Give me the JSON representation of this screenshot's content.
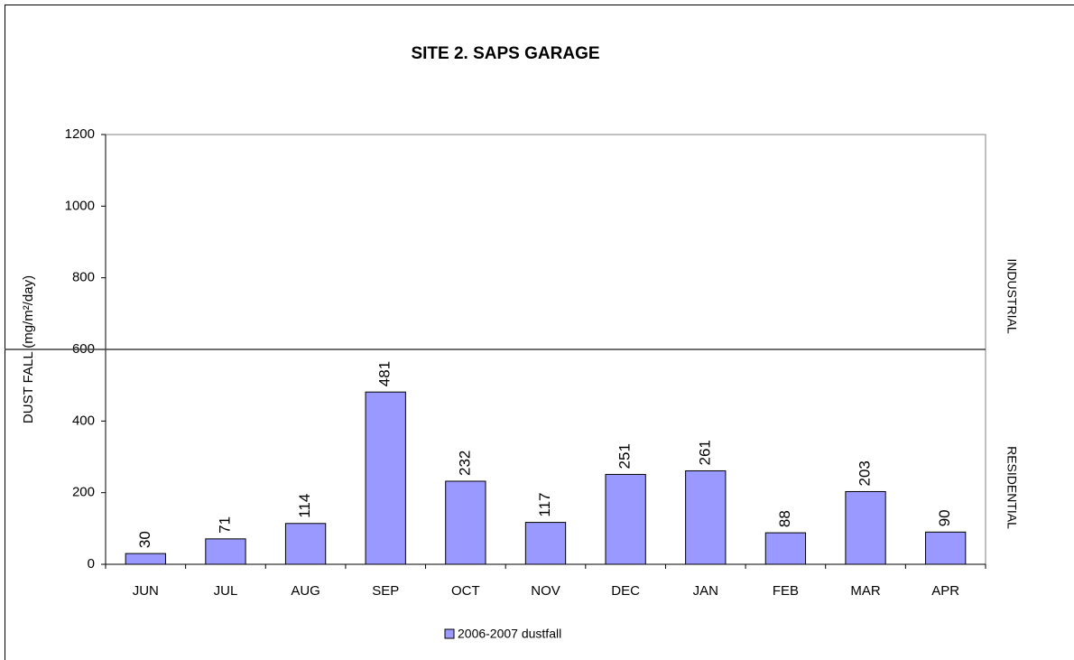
{
  "chart_data": {
    "type": "bar",
    "title": "SITE 2. SAPS GARAGE",
    "y_label": "DUST FALL  (mg/m²/day)",
    "categories": [
      "JUN",
      "JUL",
      "AUG",
      "SEP",
      "OCT",
      "NOV",
      "DEC",
      "JAN",
      "FEB",
      "MAR",
      "APR"
    ],
    "series": [
      {
        "name": "2006-2007 dustfall",
        "color": "#9999ff",
        "values": [
          30,
          71,
          114,
          481,
          232,
          117,
          251,
          261,
          88,
          203,
          90
        ]
      }
    ],
    "ylim": [
      0,
      1200
    ],
    "yticks": [
      0,
      200,
      400,
      600,
      800,
      1000,
      1200
    ],
    "grid": false,
    "threshold": 600,
    "annotations": [
      "INDUSTRIAL",
      "RESIDENTIAL"
    ],
    "legend": "bottom"
  }
}
